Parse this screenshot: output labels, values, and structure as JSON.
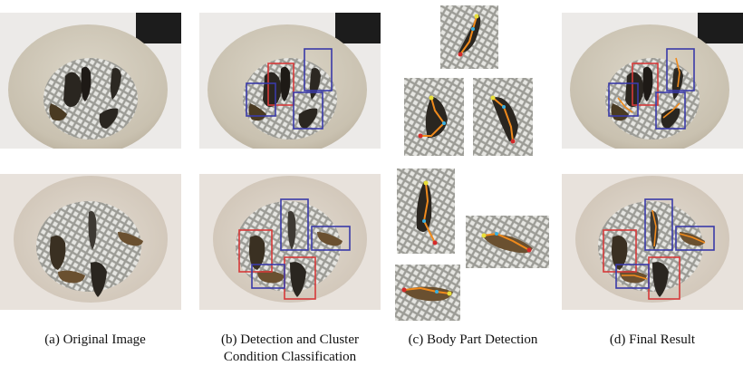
{
  "captions": {
    "a": "(a) Original Image",
    "b_line1": "(b) Detection and Cluster",
    "b_line2": "Condition Classification",
    "c": "(c) Body Part Detection",
    "d": "(d) Final Result"
  },
  "colors": {
    "cluster_box": "#d63a3a",
    "single_box": "#3a3aa8",
    "skeleton_line": "#f08a1c",
    "keypoint_head": "#e8e03a",
    "keypoint_tail": "#d42a2a",
    "keypoint_mid": "#3ab0e0"
  }
}
